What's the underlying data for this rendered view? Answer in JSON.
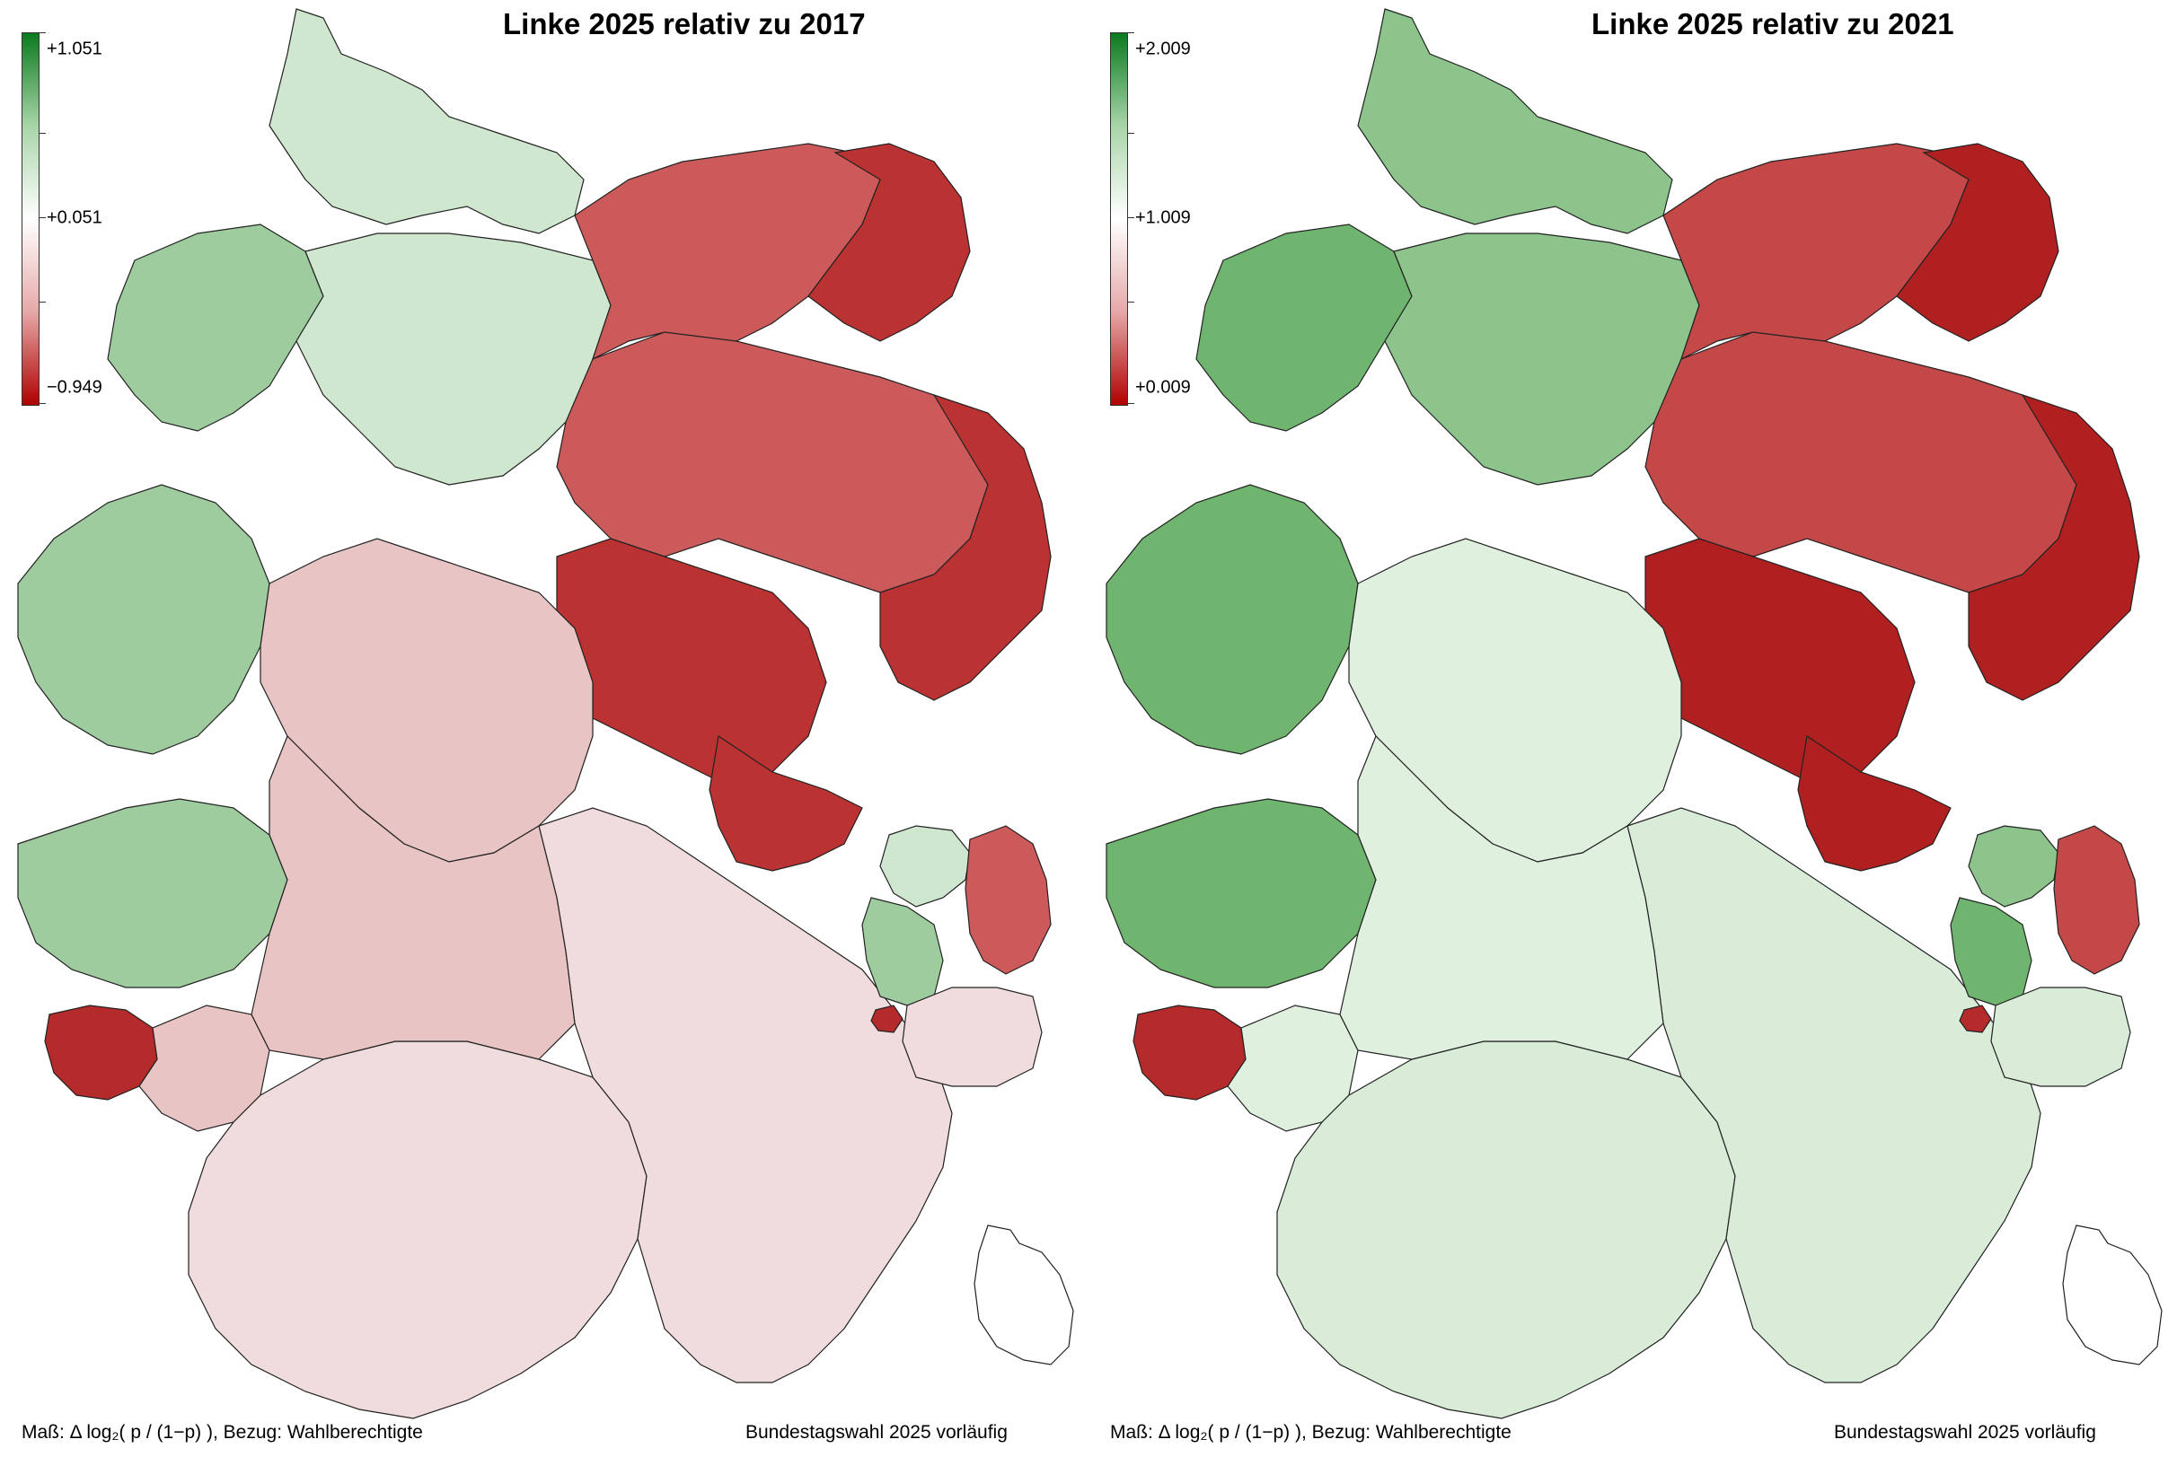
{
  "panels": [
    {
      "title": "Linke 2025 relativ zu 2017",
      "legend": {
        "max_label": "+1.051",
        "mid_label": "+0.051",
        "min_label": "−0.949",
        "colors": [
          "#0a7a1e",
          "#a8d5a8",
          "#ffffff",
          "#e6a8a8",
          "#b00000"
        ]
      },
      "footer_left": "Maß: Δ log₂( p / (1−p) ), Bezug: Wahlberechtigte",
      "footer_right": "Bundestagswahl 2025 vorläufig",
      "region_colors": {
        "north_west": "#9fcc9f",
        "north": "#cfe6cf",
        "east": "#cc5a5a",
        "east_dark": "#bb3232",
        "south_west": "#e9c4c4",
        "south": "#f0dcdc",
        "saar": "#b52a2a"
      }
    },
    {
      "title": "Linke 2025 relativ zu 2021",
      "legend": {
        "max_label": "+2.009",
        "mid_label": "+1.009",
        "min_label": "+0.009",
        "colors": [
          "#0a7a1e",
          "#a8d5a8",
          "#ffffff",
          "#e6a8a8",
          "#b00000"
        ]
      },
      "footer_left": "Maß: Δ log₂( p / (1−p) ), Bezug: Wahlberechtigte",
      "footer_right": "Bundestagswahl 2025 vorläufig",
      "region_colors": {
        "north_west": "#6fb56f",
        "north": "#8cc48c",
        "east": "#c44848",
        "east_dark": "#b02020",
        "south_west": "#dff0df",
        "south": "#d8ecd8",
        "saar": "#b52a2a"
      }
    }
  ]
}
